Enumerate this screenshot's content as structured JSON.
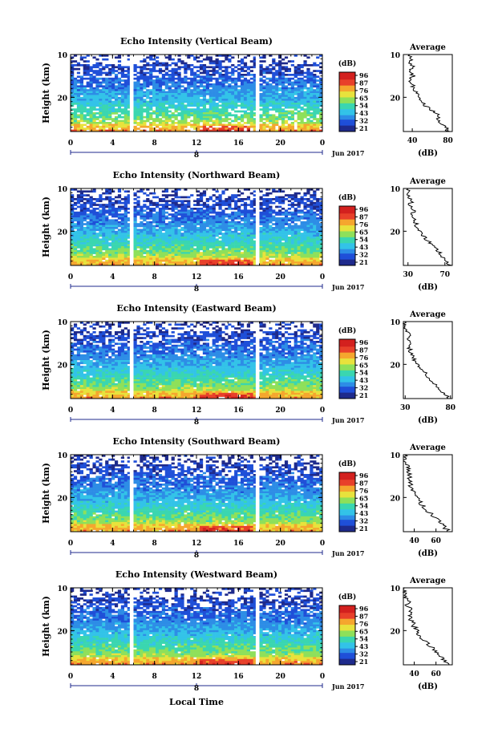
{
  "colors": {
    "colorbar_stops": [
      "#1e2a8c",
      "#1f4fd8",
      "#2d8de6",
      "#33c3e8",
      "#3ad6b0",
      "#8ee05a",
      "#e8e23c",
      "#f5a62e",
      "#e8402a",
      "#d3201e"
    ],
    "line": "#000000",
    "axis_blue": "#1f2a8c"
  },
  "shared": {
    "colorbar_unit": "(dB)",
    "colorbar_ticks": [
      "96",
      "87",
      "76",
      "65",
      "54",
      "43",
      "32",
      "21"
    ],
    "avg_title": "Average",
    "avg_xlabel": "(dB)",
    "y_ticks": [
      "20",
      "10"
    ],
    "x_ticks": [
      "0",
      "4",
      "8",
      "12",
      "16",
      "20",
      "0"
    ],
    "day_label": "8",
    "month_label": "Jun 2017",
    "ylabel": "Height (km)",
    "xlabel": "Local Time"
  },
  "chart_data": [
    {
      "type": "heatmap",
      "title": "Echo Intensity (Vertical Beam)",
      "xlabel": "",
      "ylabel": "Height (km)",
      "x_range_hours": [
        0,
        24
      ],
      "y_range_km": [
        2,
        20
      ],
      "y_ticks": [
        10,
        20
      ],
      "x_ticks": [
        0,
        4,
        8,
        12,
        16,
        20,
        24
      ],
      "colorbar": {
        "unit": "(dB)",
        "ticks": [
          96,
          87,
          76,
          65,
          54,
          43,
          32,
          21
        ]
      },
      "data_gaps_hours": [
        5.8,
        17.8
      ],
      "profile": {
        "title": "Average",
        "xlabel": "(dB)",
        "x_ticks": [
          40,
          80
        ],
        "xlim": [
          30,
          85
        ],
        "height_km": [
          2,
          3,
          4,
          5,
          6,
          7,
          8,
          9,
          10,
          11,
          12,
          13,
          14,
          15,
          16,
          17,
          18,
          19,
          20
        ],
        "values_db": [
          80,
          78,
          72,
          68,
          70,
          62,
          55,
          52,
          48,
          44,
          42,
          40,
          38,
          41,
          36,
          42,
          38,
          40,
          37
        ]
      }
    },
    {
      "type": "heatmap",
      "title": "Echo Intensity (Northward Beam)",
      "xlabel": "",
      "ylabel": "Height (km)",
      "x_range_hours": [
        0,
        24
      ],
      "y_range_km": [
        2,
        20
      ],
      "y_ticks": [
        10,
        20
      ],
      "x_ticks": [
        0,
        4,
        8,
        12,
        16,
        20,
        24
      ],
      "colorbar": {
        "unit": "(dB)",
        "ticks": [
          96,
          87,
          76,
          65,
          54,
          43,
          32,
          21
        ]
      },
      "data_gaps_hours": [
        5.8,
        17.8
      ],
      "profile": {
        "title": "Average",
        "xlabel": "(dB)",
        "x_ticks": [
          30,
          70
        ],
        "xlim": [
          25,
          78
        ],
        "height_km": [
          2,
          3,
          4,
          5,
          6,
          7,
          8,
          9,
          10,
          11,
          12,
          13,
          14,
          15,
          16,
          17,
          18,
          19,
          20
        ],
        "values_db": [
          76,
          72,
          68,
          65,
          60,
          55,
          50,
          46,
          42,
          40,
          38,
          36,
          34,
          37,
          32,
          34,
          31,
          30,
          30
        ]
      }
    },
    {
      "type": "heatmap",
      "title": "Echo Intensity (Eastward Beam)",
      "xlabel": "",
      "ylabel": "Height (km)",
      "x_range_hours": [
        0,
        24
      ],
      "y_range_km": [
        2,
        20
      ],
      "y_ticks": [
        10,
        20
      ],
      "x_ticks": [
        0,
        4,
        8,
        12,
        16,
        20,
        24
      ],
      "colorbar": {
        "unit": "(dB)",
        "ticks": [
          96,
          87,
          76,
          65,
          54,
          43,
          32,
          21
        ]
      },
      "data_gaps_hours": [
        5.8,
        17.8
      ],
      "profile": {
        "title": "Average",
        "xlabel": "(dB)",
        "x_ticks": [
          30,
          80
        ],
        "xlim": [
          28,
          82
        ],
        "height_km": [
          2,
          3,
          4,
          5,
          6,
          7,
          8,
          9,
          10,
          11,
          12,
          13,
          14,
          15,
          16,
          17,
          18,
          19,
          20
        ],
        "values_db": [
          78,
          74,
          70,
          65,
          60,
          56,
          52,
          48,
          44,
          40,
          38,
          36,
          34,
          38,
          33,
          34,
          31,
          30,
          30
        ]
      }
    },
    {
      "type": "heatmap",
      "title": "Echo Intensity (Southward Beam)",
      "xlabel": "",
      "ylabel": "Height (km)",
      "x_range_hours": [
        0,
        24
      ],
      "y_range_km": [
        2,
        20
      ],
      "y_ticks": [
        10,
        20
      ],
      "x_ticks": [
        0,
        4,
        8,
        12,
        16,
        20,
        24
      ],
      "colorbar": {
        "unit": "(dB)",
        "ticks": [
          96,
          87,
          76,
          65,
          54,
          43,
          32,
          21
        ]
      },
      "data_gaps_hours": [
        5.8,
        17.8
      ],
      "profile": {
        "title": "Average",
        "xlabel": "(dB)",
        "x_ticks": [
          40,
          60
        ],
        "xlim": [
          30,
          75
        ],
        "height_km": [
          2,
          3,
          4,
          5,
          6,
          7,
          8,
          9,
          10,
          11,
          12,
          13,
          14,
          15,
          16,
          17,
          18,
          19,
          20
        ],
        "values_db": [
          72,
          68,
          64,
          60,
          56,
          52,
          48,
          45,
          42,
          40,
          38,
          36,
          35,
          37,
          33,
          35,
          32,
          31,
          31
        ]
      }
    },
    {
      "type": "heatmap",
      "title": "Echo Intensity (Westward Beam)",
      "xlabel": "Local Time",
      "ylabel": "Height (km)",
      "x_range_hours": [
        0,
        24
      ],
      "y_range_km": [
        2,
        20
      ],
      "y_ticks": [
        10,
        20
      ],
      "x_ticks": [
        0,
        4,
        8,
        12,
        16,
        20,
        24
      ],
      "colorbar": {
        "unit": "(dB)",
        "ticks": [
          96,
          87,
          76,
          65,
          54,
          43,
          32,
          21
        ]
      },
      "data_gaps_hours": [
        5.8,
        17.8
      ],
      "profile": {
        "title": "Average",
        "xlabel": "(dB)",
        "x_ticks": [
          40,
          60
        ],
        "xlim": [
          30,
          75
        ],
        "height_km": [
          2,
          3,
          4,
          5,
          6,
          7,
          8,
          9,
          10,
          11,
          12,
          13,
          14,
          15,
          16,
          17,
          18,
          19,
          20
        ],
        "values_db": [
          72,
          68,
          64,
          60,
          56,
          52,
          48,
          45,
          42,
          40,
          38,
          36,
          35,
          37,
          33,
          35,
          32,
          31,
          31
        ]
      }
    }
  ]
}
